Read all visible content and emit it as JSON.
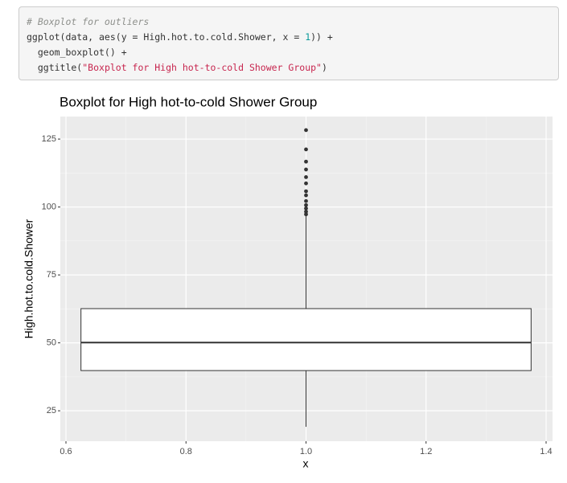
{
  "code": {
    "lines": [
      [
        {
          "text": "# Boxplot for outliers",
          "color": "#8e908c",
          "italic": true
        }
      ],
      [
        {
          "text": "ggplot(data, aes(y = High.hot.to.cold.Shower, x = ",
          "color": "#333333"
        },
        {
          "text": "1",
          "color": "#099999"
        },
        {
          "text": ")) +",
          "color": "#333333"
        }
      ],
      [
        {
          "text": "  geom_boxplot() +",
          "color": "#333333"
        }
      ],
      [
        {
          "text": "  ggtitle(",
          "color": "#333333"
        },
        {
          "text": "\"Boxplot for High hot-to-cold Shower Group\"",
          "color": "#c7254e"
        },
        {
          "text": ")",
          "color": "#333333"
        }
      ]
    ]
  },
  "chart_data": {
    "type": "boxplot",
    "title": "Boxplot for High hot-to-cold Shower Group",
    "x_label": "x",
    "y_label": "High.hot.to.cold.Shower",
    "xlim": [
      0.5906,
      1.4107
    ],
    "xticks": [
      0.6,
      0.8,
      {
        "value": 1,
        "label": "1.0"
      },
      1.2,
      1.4
    ],
    "x_minor_ticks": [
      0.7,
      0.9,
      1.1,
      1.3
    ],
    "ylim": [
      13.8,
      133.3
    ],
    "yticks": [
      25,
      50,
      75,
      100,
      125
    ],
    "y_minor_ticks": [
      37.5,
      62.5,
      87.5,
      112.5
    ],
    "grid": true,
    "box_width": 0.75,
    "box_color": "#333333",
    "box_fill": "#ffffff",
    "boxes": [
      {
        "x": 1,
        "whislo": 19.1,
        "q1": 39.8,
        "med": 50.1,
        "q3": 62.6,
        "whishi": 96.6,
        "fliers": [
          128.3,
          121.2,
          116.7,
          113.8,
          111,
          108.7,
          105.8,
          104.3,
          102.2,
          100.7,
          99.5,
          98.3,
          97.3
        ]
      }
    ]
  }
}
